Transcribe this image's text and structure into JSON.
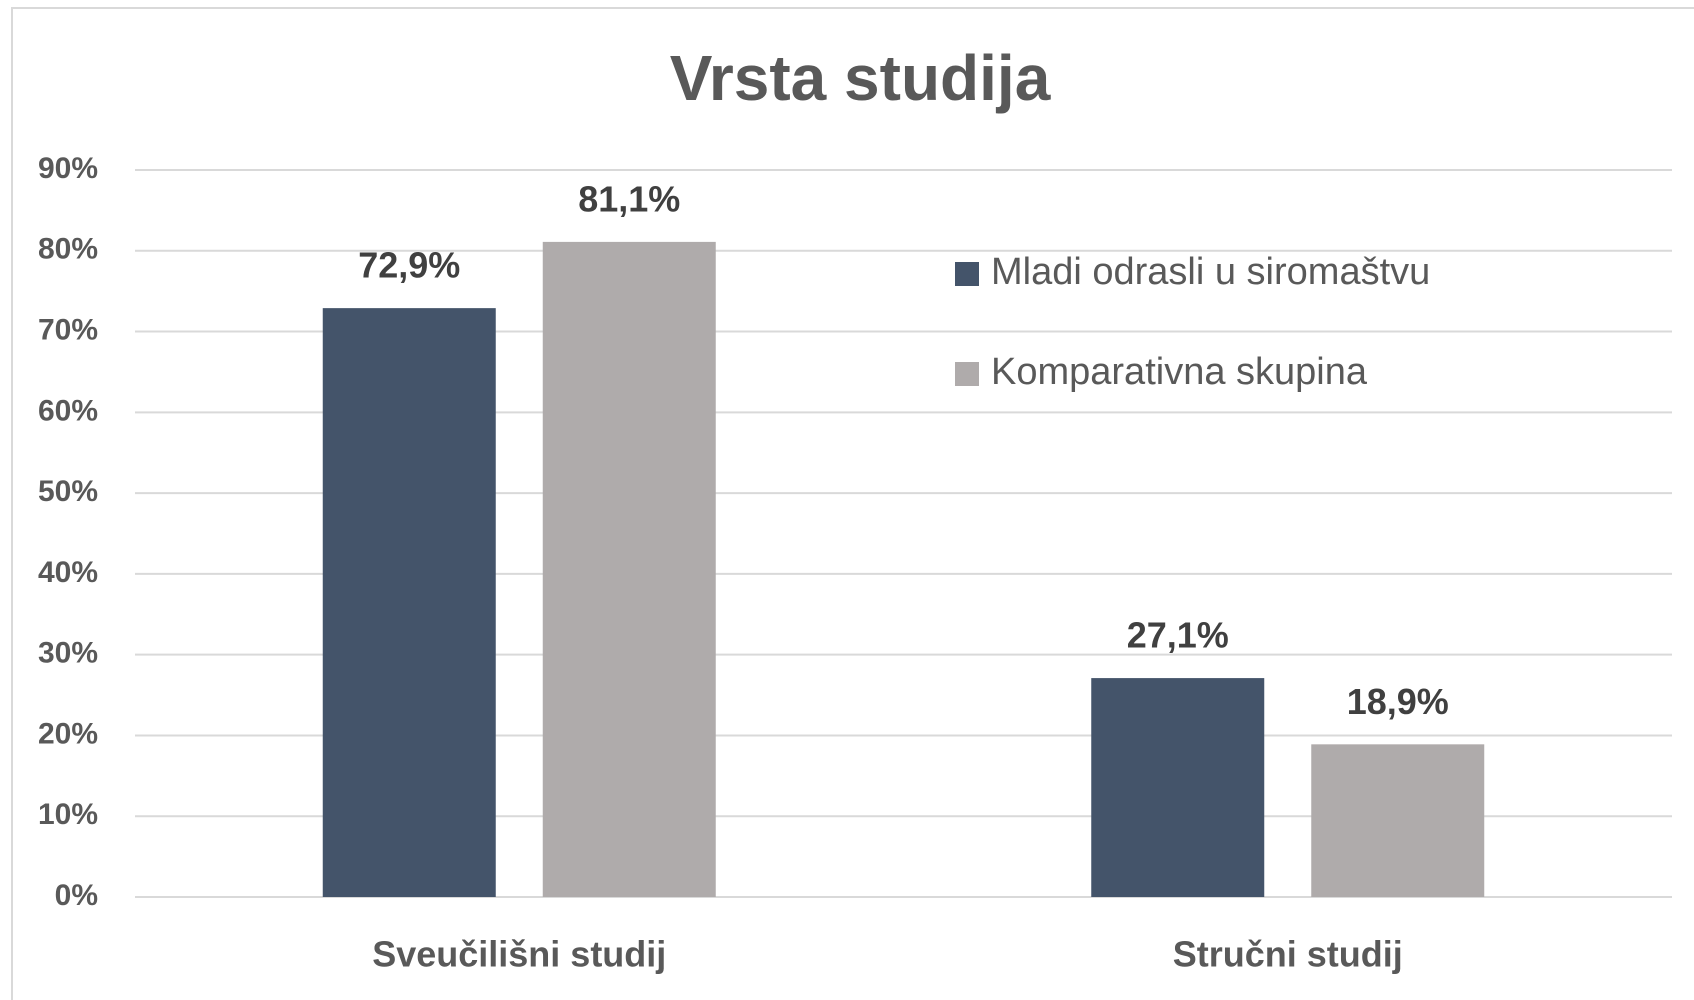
{
  "chart_data": {
    "type": "bar",
    "title": "Vrsta studija",
    "categories": [
      "Sveučilišni studij",
      "Stručni studij"
    ],
    "series": [
      {
        "name": "Mladi odrasli u siromaštvu",
        "color": "#44546a",
        "values": [
          72.9,
          27.1
        ],
        "value_labels": [
          "72,9%",
          "27,1%"
        ]
      },
      {
        "name": "Komparativna skupina",
        "color": "#afabab",
        "values": [
          81.1,
          18.9
        ],
        "value_labels": [
          "81,1%",
          "18,9%"
        ]
      }
    ],
    "ylim": [
      0,
      90
    ],
    "yticks": [
      {
        "value": 0,
        "label": "0%"
      },
      {
        "value": 10,
        "label": "10%"
      },
      {
        "value": 20,
        "label": "20%"
      },
      {
        "value": 30,
        "label": "30%"
      },
      {
        "value": 40,
        "label": "40%"
      },
      {
        "value": 50,
        "label": "50%"
      },
      {
        "value": 60,
        "label": "60%"
      },
      {
        "value": 70,
        "label": "70%"
      },
      {
        "value": 80,
        "label": "80%"
      },
      {
        "value": 90,
        "label": "90%"
      }
    ],
    "grid": true,
    "legend": "upper right"
  }
}
